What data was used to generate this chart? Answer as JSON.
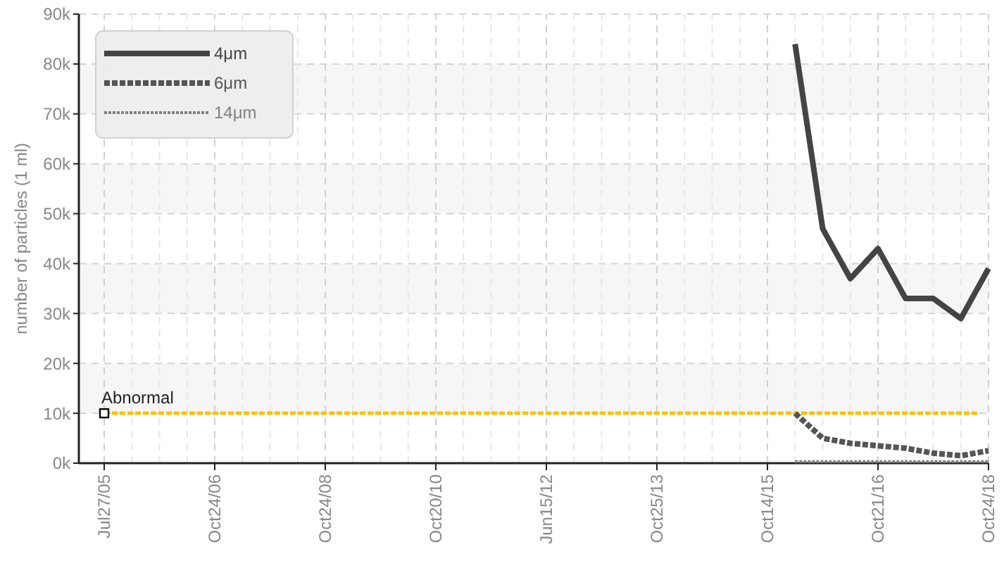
{
  "chart_data": {
    "type": "line",
    "ylabel": "number of particles (1 ml)",
    "categories": [
      "Jul27/05",
      null,
      null,
      null,
      "Oct24/06",
      null,
      null,
      null,
      "Oct24/08",
      null,
      null,
      null,
      "Oct20/10",
      null,
      null,
      null,
      "Jun15/12",
      null,
      null,
      null,
      "Oct25/13",
      null,
      null,
      null,
      "Oct14/15",
      null,
      null,
      null,
      "Oct21/16",
      null,
      null,
      null,
      "Oct24/18"
    ],
    "series": [
      {
        "name": "4μm",
        "color": "#444444",
        "line_style": "solid",
        "values": [
          null,
          null,
          null,
          null,
          null,
          null,
          null,
          null,
          null,
          null,
          null,
          null,
          null,
          null,
          null,
          null,
          null,
          null,
          null,
          null,
          null,
          null,
          null,
          null,
          null,
          84000,
          47000,
          37000,
          43000,
          33000,
          33000,
          29000,
          39000
        ]
      },
      {
        "name": "6μm",
        "color": "#555555",
        "line_style": "dashed",
        "values": [
          null,
          null,
          null,
          null,
          null,
          null,
          null,
          null,
          null,
          null,
          null,
          null,
          null,
          null,
          null,
          null,
          null,
          null,
          null,
          null,
          null,
          null,
          null,
          null,
          null,
          10000,
          5000,
          4000,
          3500,
          3000,
          2000,
          1500,
          2500
        ]
      },
      {
        "name": "14μm",
        "color": "#808080",
        "line_style": "dotted",
        "values": [
          null,
          null,
          null,
          null,
          null,
          null,
          null,
          null,
          null,
          null,
          null,
          null,
          null,
          null,
          null,
          null,
          null,
          null,
          null,
          null,
          null,
          null,
          null,
          null,
          null,
          300,
          300,
          300,
          300,
          300,
          300,
          300,
          300
        ]
      }
    ],
    "ylim": [
      0,
      90000
    ],
    "yticks": [
      {
        "value": 0,
        "label": "0k"
      },
      {
        "value": 10000,
        "label": "10k"
      },
      {
        "value": 20000,
        "label": "20k"
      },
      {
        "value": 30000,
        "label": "30k"
      },
      {
        "value": 40000,
        "label": "40k"
      },
      {
        "value": 50000,
        "label": "50k"
      },
      {
        "value": 60000,
        "label": "60k"
      },
      {
        "value": 70000,
        "label": "70k"
      },
      {
        "value": 80000,
        "label": "80k"
      },
      {
        "value": 90000,
        "label": "90k"
      }
    ],
    "ref_lines": [
      {
        "axis": "y",
        "value": 10000,
        "label": "Abnormal",
        "color": "#f5c400",
        "line_style": "dashed"
      }
    ],
    "grid": true,
    "legend": "top left"
  }
}
